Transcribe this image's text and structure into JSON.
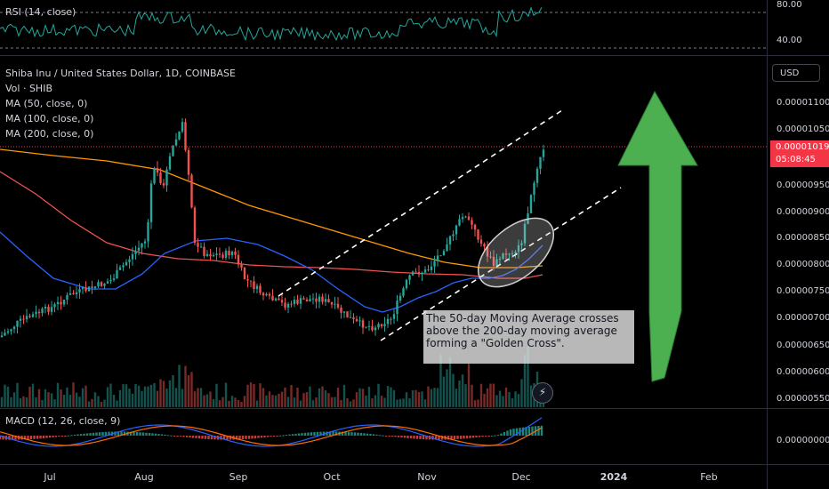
{
  "rsi": {
    "legend": "RSI (14, close)",
    "ticks": [
      "80.00",
      "40.00"
    ]
  },
  "main": {
    "legend": {
      "symbol": "Shiba Inu / United States Dollar, 1D, COINBASE",
      "volume": "Vol · SHIB",
      "ma50": "MA (50, close, 0)",
      "ma100": "MA (100, close, 0)",
      "ma200": "MA (200, close, 0)"
    },
    "currency_button": "USD",
    "price_ticks": [
      "0.00001100",
      "0.00001050",
      "0.00000950",
      "0.00000900",
      "0.00000850",
      "0.00000800",
      "0.00000750",
      "0.00000700",
      "0.00000650",
      "0.00000600",
      "0.00000550"
    ],
    "last_price": "0.00001019",
    "countdown": "05:08:45",
    "annotation": "The 50-day Moving Average crosses above the 200-day moving average forming a \"Golden Cross\"."
  },
  "macd": {
    "legend": "MACD (12, 26, close, 9)",
    "ticks": [
      "0.00000000"
    ]
  },
  "x_axis": {
    "labels": [
      "Jul",
      "Aug",
      "Sep",
      "Oct",
      "Nov",
      "Dec",
      "2024",
      "Feb"
    ]
  },
  "colors": {
    "up": "#26a69a",
    "down": "#ef5350",
    "ma50": "#2962ff",
    "ma100": "#ef5350",
    "ma200": "#ff9800",
    "arrow": "#4caf50",
    "rsi_line": "#26a69a"
  },
  "icons": {
    "arrow": "green-up-arrow",
    "bolt": "lightning-icon"
  }
}
